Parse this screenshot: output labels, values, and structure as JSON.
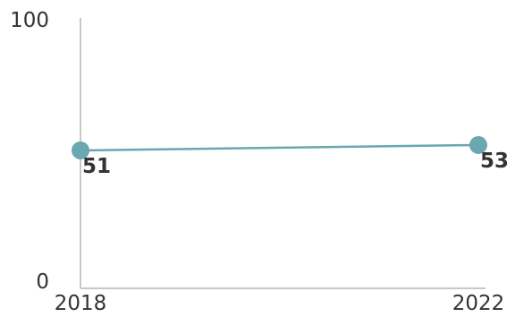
{
  "chart_data": {
    "type": "line",
    "x": [
      "2018",
      "2022"
    ],
    "series": [
      {
        "values": [
          51,
          53
        ]
      }
    ],
    "data_labels": [
      "51",
      "53"
    ],
    "ylim": [
      0,
      100
    ],
    "y_ticks": [
      "0",
      "100"
    ],
    "x_ticks": [
      "2018",
      "2022"
    ],
    "grid": false,
    "legend": "none",
    "title": "",
    "xlabel": "",
    "ylabel": "",
    "colors": {
      "line": "#6aa7b1",
      "marker": "#6aa7b1",
      "axis": "#c8c8c8",
      "text": "#333333"
    }
  }
}
